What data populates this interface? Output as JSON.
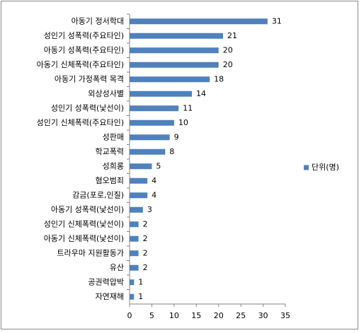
{
  "chart_data": {
    "type": "barh",
    "categories": [
      "아동기 정서학대",
      "성인기 성폭력(주요타인)",
      "아동기 성폭력(주요타인)",
      "아동기 신체폭력(주요타인)",
      "아동기 가정폭력 목격",
      "외상성사별",
      "성인기 성폭력(낯선이)",
      "성인기 신체폭력(주요타인)",
      "성판매",
      "학교폭력",
      "성희롱",
      "혐오범죄",
      "감금(포로,인질)",
      "아동기 성폭력(낯선이)",
      "성인기 신체폭력(낯선이)",
      "아동기 신체폭력(낯선이)",
      "트라우마 지원활동가",
      "유산",
      "공권력압박",
      "자연재해"
    ],
    "series": [
      {
        "name": "단위(명)",
        "color": "#4f81bd",
        "values": [
          31,
          21,
          20,
          20,
          18,
          14,
          11,
          10,
          9,
          8,
          5,
          4,
          4,
          3,
          2,
          2,
          2,
          2,
          1,
          1
        ]
      }
    ],
    "xlim": [
      0,
      35
    ],
    "xticks": [
      0,
      5,
      10,
      15,
      20,
      25,
      30,
      35
    ],
    "legend": "right"
  }
}
